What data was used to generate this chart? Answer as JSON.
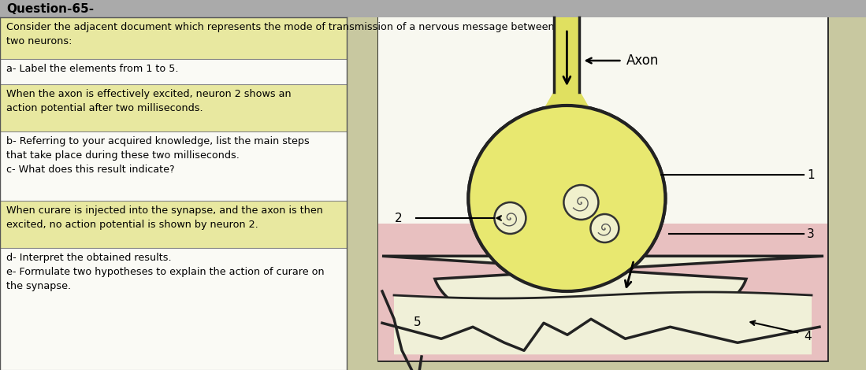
{
  "title": "Question-65-",
  "title_bg": "#aaaaaa",
  "page_bg": "#c8c8a0",
  "highlight_bg": "#e8e8a0",
  "white_bg": "#fafaf5",
  "diagram_outer_bg": "#f0efe0",
  "diagram_inner_bg": "#f8f8f0",
  "pink_bg": "#e8c0c0",
  "bulb_color": "#e8e870",
  "axon_color": "#e0e060",
  "axon_label": "Axon",
  "sections": [
    {
      "highlight": true,
      "text": "Consider the adjacent document which represents the mode of transmission of a nervous message between\ntwo neurons:"
    },
    {
      "highlight": false,
      "text": "a- Label the elements from 1 to 5."
    },
    {
      "highlight": true,
      "text": "When the axon is effectively excited, neuron 2 shows an\naction potential after two milliseconds."
    },
    {
      "highlight": false,
      "text": "b- Referring to your acquired knowledge, list the main steps\nthat take place during these two milliseconds.\nc- What does this result indicate?"
    },
    {
      "highlight": true,
      "text": "When curare is injected into the synapse, and the axon is then\nexcited, no action potential is shown by neuron 2."
    },
    {
      "highlight": false,
      "text": "d- Interpret the obtained results.\ne- Formulate two hypotheses to explain the action of curare on\nthe synapse."
    }
  ]
}
